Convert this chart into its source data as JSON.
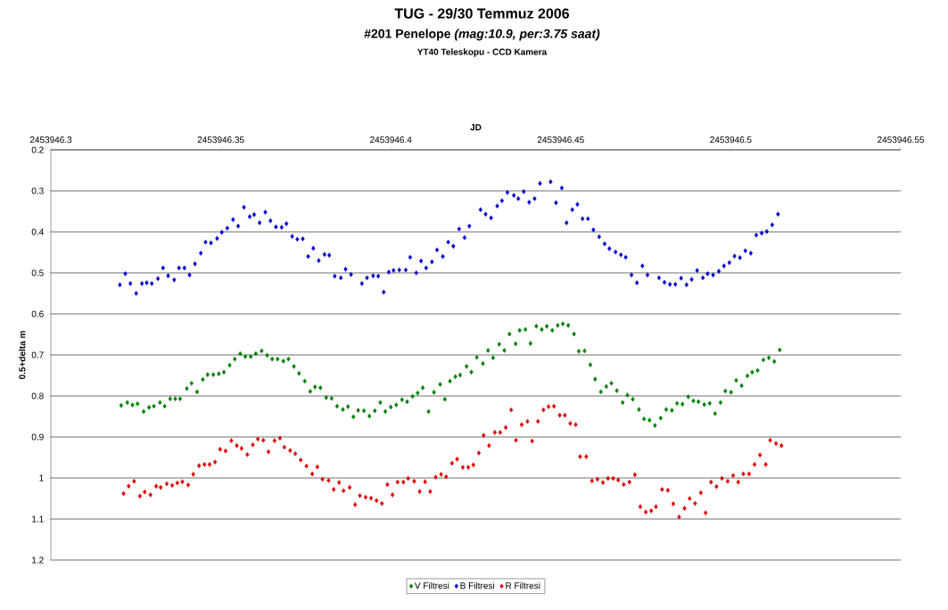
{
  "chart_data": {
    "type": "scatter",
    "title": "TUG - 29/30 Temmuz 2006",
    "subtitle": "#201 Penelope *(mag:10.9, per:3.75 saat)*",
    "annotations": [
      "YT40 Teleskopu - CCD Kamera"
    ],
    "xlabel": "JD",
    "ylabel": "0.5+delta m",
    "xlim": [
      2453946.3,
      2453946.55
    ],
    "xticks": [
      2453946.3,
      2453946.35,
      2453946.4,
      2453946.45,
      2453946.5,
      2453946.55
    ],
    "ylim": [
      1.2,
      0.2
    ],
    "yticks": [
      0.2,
      0.3,
      0.4,
      0.5,
      0.6,
      0.7,
      0.8,
      0.9,
      1,
      1.1,
      1.2
    ],
    "grid": "y",
    "legend": "bottom",
    "marker": "diamond",
    "series": [
      {
        "name": "V Filtresi",
        "color": "#008000",
        "x": [
          2453946.3207,
          2453946.3225,
          2453946.324,
          2453946.3255,
          2453946.3273,
          2453946.3289,
          2453946.3303,
          2453946.3321,
          2453946.3335,
          2453946.3351,
          2453946.3366,
          2453946.338,
          2453946.34,
          2453946.3414,
          2453946.343,
          2453946.3447,
          2453946.3461,
          2453946.3478,
          2453946.3494,
          2453946.3509,
          2453946.3526,
          2453946.3541,
          2453946.3557,
          2453946.3572,
          2453946.3588,
          2453946.3603,
          2453946.362,
          2453946.3636,
          2453946.3651,
          2453946.3667,
          2453946.3684,
          2453946.3699,
          2453946.3715,
          2453946.373,
          2453946.3747,
          2453946.3763,
          2453946.3777,
          2453946.3793,
          2453946.381,
          2453946.3826,
          2453946.3842,
          2453946.3859,
          2453946.3874,
          2453946.389,
          2453946.3904,
          2453946.3921,
          2453946.3937,
          2453946.3953,
          2453946.3969,
          2453946.3984,
          2453946.4,
          2453946.4016,
          2453946.4033,
          2453946.4048,
          2453946.4064,
          2453946.4079,
          2453946.4094,
          2453946.4111,
          2453946.4127,
          2453946.4145,
          2453946.4159,
          2453946.4174,
          2453946.419,
          2453946.4204,
          2453946.4223,
          2453946.4237,
          2453946.4253,
          2453946.4271,
          2453946.4286,
          2453946.4301,
          2453946.4319,
          2453946.4334,
          2453946.4349,
          2453946.4367,
          2453946.4379,
          2453946.4396,
          2453946.4411,
          2453946.4428,
          2453946.4444,
          2453946.4459,
          2453946.4475,
          2453946.4491,
          2453946.4506,
          2453946.4522,
          2453946.4539,
          2453946.4553,
          2453946.457,
          2453946.4587,
          2453946.4601,
          2453946.4618,
          2453946.4634,
          2453946.4649,
          2453946.4665,
          2453946.4682,
          2453946.4696,
          2453946.4712,
          2453946.473,
          2453946.4745,
          2453946.4761,
          2453946.4777,
          2453946.4794,
          2453946.481,
          2453946.4827,
          2453946.4842,
          2453946.4858,
          2453946.4875,
          2453946.489,
          2453946.4905,
          2453946.4922,
          2453946.4938,
          2453946.4954,
          2453946.497,
          2453946.4984,
          2453946.5001,
          2453946.5016,
          2453946.5032,
          2453946.5049,
          2453946.5063,
          2453946.5079,
          2453946.5096,
          2453946.5112,
          2453946.5128,
          2453946.5144
        ],
        "values": [
          0.823,
          0.816,
          0.822,
          0.819,
          0.838,
          0.828,
          0.825,
          0.816,
          0.825,
          0.807,
          0.807,
          0.807,
          0.782,
          0.769,
          0.79,
          0.76,
          0.748,
          0.748,
          0.746,
          0.742,
          0.725,
          0.71,
          0.697,
          0.704,
          0.704,
          0.697,
          0.69,
          0.701,
          0.71,
          0.71,
          0.715,
          0.71,
          0.728,
          0.745,
          0.764,
          0.789,
          0.778,
          0.78,
          0.804,
          0.806,
          0.825,
          0.833,
          0.826,
          0.851,
          0.835,
          0.836,
          0.849,
          0.836,
          0.816,
          0.838,
          0.827,
          0.822,
          0.809,
          0.814,
          0.801,
          0.793,
          0.78,
          0.838,
          0.791,
          0.772,
          0.808,
          0.764,
          0.753,
          0.749,
          0.728,
          0.742,
          0.706,
          0.721,
          0.689,
          0.707,
          0.674,
          0.689,
          0.649,
          0.673,
          0.64,
          0.638,
          0.672,
          0.63,
          0.638,
          0.63,
          0.64,
          0.628,
          0.624,
          0.628,
          0.649,
          0.691,
          0.69,
          0.724,
          0.759,
          0.79,
          0.777,
          0.769,
          0.787,
          0.816,
          0.798,
          0.808,
          0.833,
          0.856,
          0.859,
          0.872,
          0.854,
          0.833,
          0.835,
          0.818,
          0.82,
          0.802,
          0.812,
          0.814,
          0.821,
          0.818,
          0.843,
          0.816,
          0.788,
          0.791,
          0.762,
          0.775,
          0.751,
          0.742,
          0.738,
          0.712,
          0.707,
          0.716,
          0.688
        ]
      },
      {
        "name": "B Filtresi",
        "color": "#0000cc",
        "x": [
          2453946.3203,
          2453946.3219,
          2453946.3234,
          2453946.3251,
          2453946.3268,
          2453946.3282,
          2453946.3297,
          2453946.3315,
          2453946.333,
          2453946.3345,
          2453946.3363,
          2453946.3377,
          2453946.3393,
          2453946.3408,
          2453946.3424,
          2453946.3441,
          2453946.3455,
          2453946.3471,
          2453946.3489,
          2453946.3503,
          2453946.3519,
          2453946.3536,
          2453946.3551,
          2453946.3568,
          2453946.3585,
          2453946.3598,
          2453946.3614,
          2453946.3631,
          2453946.3646,
          2453946.3662,
          2453946.3679,
          2453946.3693,
          2453946.371,
          2453946.3725,
          2453946.3741,
          2453946.3757,
          2453946.3772,
          2453946.3788,
          2453946.3805,
          2453946.3819,
          2453946.3835,
          2453946.3853,
          2453946.3867,
          2453946.3883,
          2453946.3915,
          2453946.393,
          2453946.3948,
          2453946.3963,
          2453946.3979,
          2453946.3994,
          2453946.4008,
          2453946.4025,
          2453946.4044,
          2453946.4057,
          2453946.4075,
          2453946.4089,
          2453946.4104,
          2453946.4121,
          2453946.4136,
          2453946.4153,
          2453946.4169,
          2453946.4184,
          2453946.4201,
          2453946.4217,
          2453946.4231,
          2453946.4264,
          2453946.4279,
          2453946.4295,
          2453946.4313,
          2453946.4327,
          2453946.4343,
          2453946.4362,
          2453946.4375,
          2453946.4391,
          2453946.4407,
          2453946.4423,
          2453946.4439,
          2453946.447,
          2453946.4486,
          2453946.4503,
          2453946.4517,
          2453946.4534,
          2453946.4549,
          2453946.4564,
          2453946.458,
          2453946.4596,
          2453946.4613,
          2453946.4629,
          2453946.4643,
          2453946.4661,
          2453946.4677,
          2453946.4691,
          2453946.4708,
          2453946.4724,
          2453946.474,
          2453946.4755,
          2453946.4789,
          2453946.4805,
          2453946.4821,
          2453946.4837,
          2453946.4854,
          2453946.487,
          2453946.4885,
          2453946.4901,
          2453946.4918,
          2453946.4932,
          2453946.4948,
          2453946.4965,
          2453946.498,
          2453946.4996,
          2453946.5011,
          2453946.5027,
          2453946.5043,
          2453946.5059,
          2453946.5075,
          2453946.5091,
          2453946.5106,
          2453946.5122,
          2453946.5139
        ],
        "values": [
          0.529,
          0.502,
          0.526,
          0.55,
          0.526,
          0.524,
          0.526,
          0.514,
          0.488,
          0.507,
          0.517,
          0.488,
          0.488,
          0.505,
          0.478,
          0.452,
          0.425,
          0.427,
          0.416,
          0.401,
          0.391,
          0.37,
          0.386,
          0.34,
          0.363,
          0.358,
          0.378,
          0.352,
          0.373,
          0.388,
          0.389,
          0.38,
          0.411,
          0.418,
          0.417,
          0.46,
          0.44,
          0.47,
          0.455,
          0.457,
          0.508,
          0.512,
          0.491,
          0.504,
          0.526,
          0.512,
          0.507,
          0.508,
          0.547,
          0.498,
          0.494,
          0.493,
          0.493,
          0.462,
          0.5,
          0.471,
          0.488,
          0.473,
          0.444,
          0.46,
          0.425,
          0.435,
          0.393,
          0.414,
          0.386,
          0.346,
          0.357,
          0.366,
          0.337,
          0.324,
          0.304,
          0.311,
          0.319,
          0.302,
          0.328,
          0.319,
          0.282,
          0.278,
          0.329,
          0.293,
          0.378,
          0.346,
          0.333,
          0.368,
          0.368,
          0.395,
          0.412,
          0.429,
          0.441,
          0.449,
          0.456,
          0.462,
          0.505,
          0.524,
          0.483,
          0.505,
          0.512,
          0.523,
          0.528,
          0.528,
          0.513,
          0.529,
          0.516,
          0.494,
          0.512,
          0.502,
          0.505,
          0.496,
          0.483,
          0.475,
          0.459,
          0.463,
          0.446,
          0.452,
          0.408,
          0.403,
          0.399,
          0.383,
          0.357
        ]
      },
      {
        "name": "R Filtresi",
        "color": "#e00000",
        "x": [
          2453946.3214,
          2453946.3229,
          2453946.3245,
          2453946.3262,
          2453946.3276,
          2453946.3293,
          2453946.331,
          2453946.3323,
          2453946.3341,
          2453946.3357,
          2453946.3372,
          2453946.3387,
          2453946.3404,
          2453946.3419,
          2453946.3436,
          2453946.3452,
          2453946.3467,
          2453946.3483,
          2453946.3498,
          2453946.3514,
          2453946.3531,
          2453946.3547,
          2453946.3561,
          2453946.3578,
          2453946.3594,
          2453946.3609,
          2453946.3625,
          2453946.364,
          2453946.3658,
          2453946.3674,
          2453946.3687,
          2453946.3704,
          2453946.3719,
          2453946.3735,
          2453946.3752,
          2453946.3769,
          2453946.3784,
          2453946.3799,
          2453946.3817,
          2453946.3832,
          2453946.3848,
          2453946.3861,
          2453946.3879,
          2453946.3895,
          2453946.3909,
          2453946.3926,
          2453946.3942,
          2453946.3958,
          2453946.3974,
          2453946.399,
          2453946.4005,
          2453946.402,
          2453946.4037,
          2453946.4051,
          2453946.4069,
          2453946.4085,
          2453946.4101,
          2453946.4116,
          2453946.4132,
          2453946.4148,
          2453946.4163,
          2453946.418,
          2453946.4195,
          2453946.4212,
          2453946.4228,
          2453946.4243,
          2453946.4259,
          2453946.4273,
          2453946.4289,
          2453946.4306,
          2453946.4322,
          2453946.4338,
          2453946.4354,
          2453946.4368,
          2453946.4385,
          2453946.4402,
          2453946.4416,
          2453946.4433,
          2453946.4449,
          2453946.4464,
          2453946.448,
          2453946.4497,
          2453946.4512,
          2453946.4528,
          2453946.4544,
          2453946.4557,
          2453946.4575,
          2453946.4592,
          2453946.4608,
          2453946.4624,
          2453946.4639,
          2453946.4654,
          2453946.4669,
          2453946.4685,
          2453946.4702,
          2453946.4718,
          2453946.4734,
          2453946.475,
          2453946.4766,
          2453946.478,
          2453946.4798,
          2453946.4815,
          2453946.4831,
          2453946.4848,
          2453946.4864,
          2453946.4879,
          2453946.4895,
          2453946.4912,
          2453946.4926,
          2453946.4942,
          2453946.4958,
          2453946.4974,
          2453946.4991,
          2453946.5007,
          2453946.5022,
          2453946.5037,
          2453946.5054,
          2453946.507,
          2453946.5086,
          2453946.5103,
          2453946.5116,
          2453946.5133,
          2453946.5149
        ],
        "values": [
          1.038,
          1.02,
          1.008,
          1.044,
          1.034,
          1.041,
          1.02,
          1.023,
          1.014,
          1.018,
          1.012,
          1.009,
          1.017,
          0.991,
          0.97,
          0.967,
          0.967,
          0.961,
          0.93,
          0.934,
          0.909,
          0.921,
          0.928,
          0.943,
          0.919,
          0.905,
          0.908,
          0.936,
          0.909,
          0.903,
          0.925,
          0.933,
          0.941,
          0.956,
          0.971,
          0.99,
          0.973,
          1.003,
          1.006,
          1.028,
          1.011,
          1.031,
          1.023,
          1.065,
          1.043,
          1.047,
          1.049,
          1.055,
          1.062,
          1.016,
          1.041,
          1.01,
          1.01,
          1.001,
          1.008,
          1.033,
          1.009,
          1.033,
          0.998,
          0.991,
          0.997,
          0.964,
          0.954,
          0.974,
          0.974,
          0.968,
          0.939,
          0.896,
          0.921,
          0.889,
          0.889,
          0.877,
          0.834,
          0.908,
          0.87,
          0.862,
          0.91,
          0.862,
          0.834,
          0.826,
          0.825,
          0.847,
          0.847,
          0.867,
          0.87,
          0.948,
          0.948,
          1.007,
          1.003,
          1.011,
          1.001,
          1.001,
          1.005,
          1.016,
          1.01,
          0.992,
          1.07,
          1.083,
          1.08,
          1.07,
          1.028,
          1.03,
          1.063,
          1.095,
          1.074,
          1.05,
          1.062,
          1.036,
          1.085,
          1.01,
          1.021,
          1.001,
          1.008,
          0.994,
          1.01,
          0.99,
          0.99,
          0.967,
          0.944,
          0.967,
          0.908,
          0.916,
          0.921
        ]
      }
    ]
  }
}
